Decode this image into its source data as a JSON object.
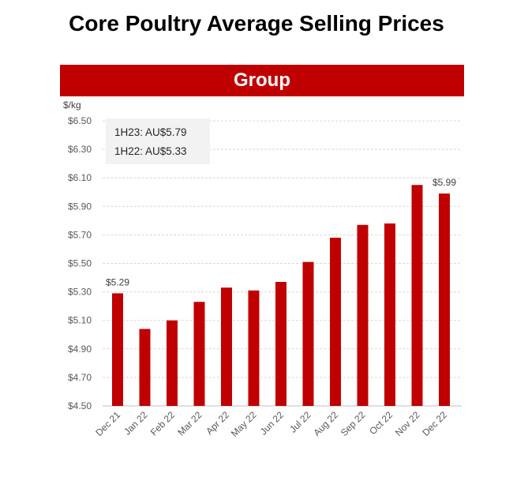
{
  "title": "Core Poultry Average Selling Prices",
  "banner": "Group",
  "colors": {
    "bar": "#c00000",
    "banner": "#c00000",
    "grid": "#d9d9d9",
    "note_bg": "#f2f2f2"
  },
  "note": {
    "line1": "1H23: AU$5.79",
    "line2": "1H22: AU$5.33"
  },
  "chart_data": {
    "type": "bar",
    "ylabel": "$/kg",
    "ylim": [
      4.5,
      6.5
    ],
    "yticks": [
      4.5,
      4.7,
      4.9,
      5.1,
      5.3,
      5.5,
      5.7,
      5.9,
      6.1,
      6.3,
      6.5
    ],
    "ytick_labels": [
      "$4.50",
      "$4.70",
      "$4.90",
      "$5.10",
      "$5.30",
      "$5.50",
      "$5.70",
      "$5.90",
      "$6.10",
      "$6.30",
      "$6.50"
    ],
    "categories": [
      "Dec 21",
      "Jan 22",
      "Feb 22",
      "Mar 22",
      "Apr 22",
      "May 22",
      "Jun 22",
      "Jul 22",
      "Aug 22",
      "Sep 22",
      "Oct 22",
      "Nov 22",
      "Dec 22"
    ],
    "values": [
      5.29,
      5.04,
      5.1,
      5.23,
      5.33,
      5.31,
      5.37,
      5.51,
      5.68,
      5.77,
      5.78,
      6.05,
      5.99
    ],
    "data_labels": [
      {
        "index": 0,
        "text": "$5.29"
      },
      {
        "index": 12,
        "text": "$5.99"
      }
    ],
    "grid": true,
    "legend": "none"
  }
}
